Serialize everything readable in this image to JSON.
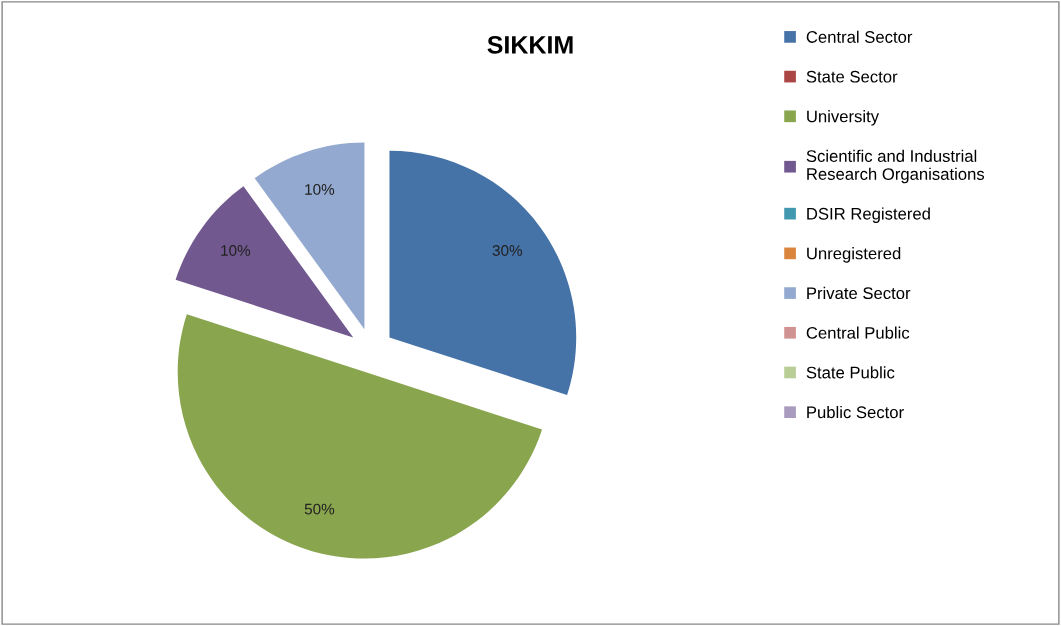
{
  "chart_data": {
    "type": "pie",
    "title": "SIKKIM",
    "categories": [
      "Central Sector",
      "State Sector",
      "University",
      "Scientific and Industrial Research Organisations",
      "DSIR Registered",
      "Unregistered",
      "Private Sector",
      "Central Public",
      "State Public",
      "Public Sector"
    ],
    "values": [
      30,
      0,
      50,
      10,
      0,
      0,
      10,
      0,
      0,
      0
    ],
    "colors": [
      "#4572a7",
      "#aa4643",
      "#89a54e",
      "#71588f",
      "#4198af",
      "#db843d",
      "#93a9cf",
      "#d19392",
      "#b9cd96",
      "#a99bbd"
    ],
    "value_labels": [
      "30%",
      null,
      "50%",
      "10%",
      null,
      null,
      "10%",
      null,
      null,
      null
    ],
    "legend": "right"
  }
}
